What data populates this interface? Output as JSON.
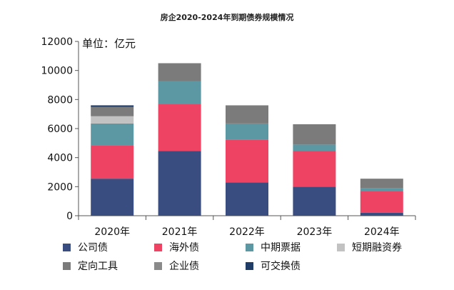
{
  "chart_data": {
    "type": "bar",
    "stacked": true,
    "title": "房企2020-2024年到期债券规模情况",
    "ylabel": "单位：亿元",
    "xlabel": "",
    "ylim": [
      0,
      12000
    ],
    "yticks": [
      0,
      2000,
      4000,
      6000,
      8000,
      10000,
      12000
    ],
    "categories": [
      "2020年",
      "2021年",
      "2022年",
      "2023年",
      "2024年"
    ],
    "series": [
      {
        "name": "公司债",
        "color": "#3a4d80",
        "values": [
          2550,
          4450,
          2300,
          2000,
          200
        ]
      },
      {
        "name": "海外债",
        "color": "#ef4363",
        "values": [
          2300,
          3250,
          2950,
          2450,
          1500
        ]
      },
      {
        "name": "中期票据",
        "color": "#5b98a3",
        "values": [
          1500,
          1550,
          1100,
          450,
          200
        ]
      },
      {
        "name": "短期融资券",
        "color": "#c2c2c2",
        "values": [
          500,
          0,
          0,
          0,
          0
        ]
      },
      {
        "name": "定向工具",
        "color": "#7b7b7b",
        "values": [
          650,
          1250,
          1250,
          1400,
          650
        ]
      },
      {
        "name": "企业债",
        "color": "#8a8a8a",
        "values": [
          0,
          0,
          0,
          0,
          0
        ]
      },
      {
        "name": "可交换债",
        "color": "#1f3d66",
        "values": [
          100,
          0,
          0,
          0,
          0
        ]
      }
    ]
  }
}
